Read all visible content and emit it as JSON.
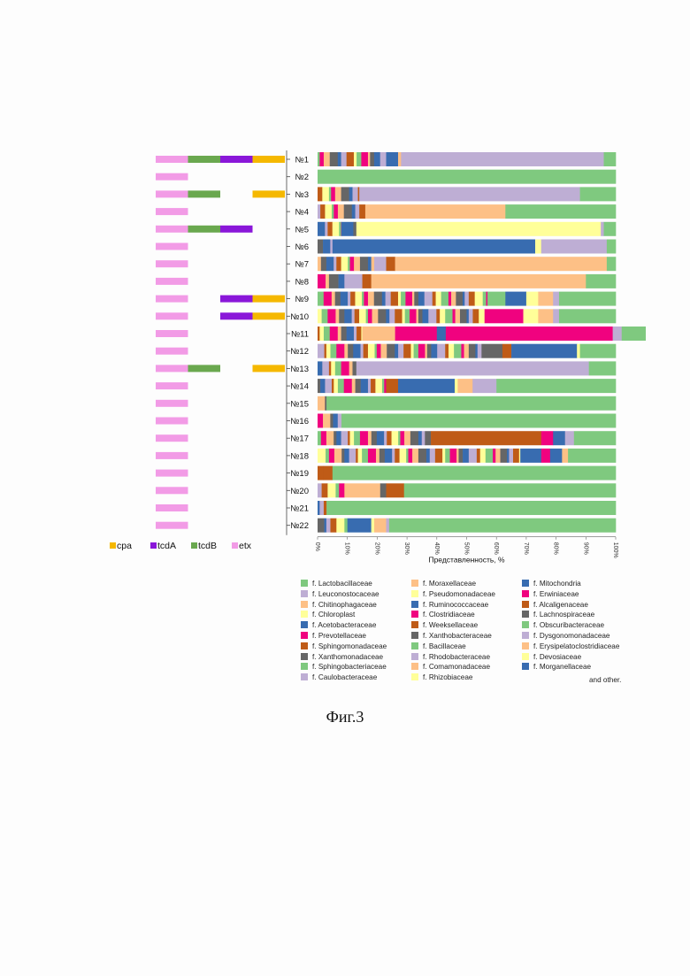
{
  "figure_caption": "Фиг.3",
  "legend_other": "and other.",
  "chart_data": [
    {
      "type": "bar",
      "orientation": "horizontal",
      "stacked": true,
      "title": "",
      "xlabel": "",
      "categories": [
        "№1",
        "№2",
        "№3",
        "№4",
        "№5",
        "№6",
        "№7",
        "№8",
        "№9",
        "№10",
        "№11",
        "№12",
        "№13",
        "№14",
        "№15",
        "№16",
        "№17",
        "№18",
        "№19",
        "№20",
        "№21",
        "№22"
      ],
      "series": [
        {
          "name": "cpa",
          "color": "#f5b800",
          "values": [
            1,
            0,
            1,
            0,
            0,
            0,
            0,
            0,
            1,
            1,
            0,
            0,
            1,
            0,
            0,
            0,
            0,
            0,
            0,
            0,
            0,
            0
          ]
        },
        {
          "name": "tcdA",
          "color": "#8a17d9",
          "values": [
            1,
            0,
            0,
            0,
            1,
            0,
            0,
            0,
            1,
            1,
            0,
            0,
            0,
            0,
            0,
            0,
            0,
            0,
            0,
            0,
            0,
            0
          ]
        },
        {
          "name": "tcdB",
          "color": "#6aa84f",
          "values": [
            1,
            0,
            1,
            0,
            1,
            0,
            0,
            0,
            0,
            0,
            0,
            0,
            1,
            0,
            0,
            0,
            0,
            0,
            0,
            0,
            0,
            0
          ]
        },
        {
          "name": "etx",
          "color": "#f29be6",
          "values": [
            1,
            1,
            1,
            1,
            1,
            1,
            1,
            1,
            1,
            1,
            1,
            1,
            1,
            1,
            1,
            1,
            1,
            1,
            1,
            1,
            1,
            1
          ]
        }
      ],
      "legend_position": "bottom"
    },
    {
      "type": "bar",
      "orientation": "horizontal",
      "stacked": true,
      "xlabel": "Представленность, %",
      "xlim": [
        0,
        100
      ],
      "xticks": [
        "0%",
        "10%",
        "20%",
        "30%",
        "40%",
        "50%",
        "60%",
        "70%",
        "80%",
        "90%",
        "100%"
      ],
      "categories": [
        "№1",
        "№2",
        "№3",
        "№4",
        "№5",
        "№6",
        "№7",
        "№8",
        "№9",
        "№10",
        "№11",
        "№12",
        "№13",
        "№14",
        "№15",
        "№16",
        "№17",
        "№18",
        "№19",
        "№20",
        "№21",
        "№22"
      ],
      "legend_position": "bottom",
      "legend": [
        {
          "label": "f. Lactobacillaceae",
          "color": "#7fc97f"
        },
        {
          "label": "f. Leuconostocaceae",
          "color": "#beaed4"
        },
        {
          "label": "f. Chitinophagaceae",
          "color": "#fdc086"
        },
        {
          "label": "f. Chloroplast",
          "color": "#ffff99"
        },
        {
          "label": "f. Acetobacteraceae",
          "color": "#386cb0"
        },
        {
          "label": "f. Prevotellaceae",
          "color": "#f0027f"
        },
        {
          "label": "f. Sphingomonadaceae",
          "color": "#bf5b17"
        },
        {
          "label": "f. Xanthomonadaceae",
          "color": "#666666"
        },
        {
          "label": "f. Sphingobacteriaceae",
          "color": "#7fc97f"
        },
        {
          "label": "f. Caulobacteraceae",
          "color": "#beaed4"
        },
        {
          "label": "f. Moraxellaceae",
          "color": "#fdc086"
        },
        {
          "label": "f. Pseudomonadaceae",
          "color": "#ffff99"
        },
        {
          "label": "f. Ruminococcaceae",
          "color": "#386cb0"
        },
        {
          "label": "f. Clostridiaceae",
          "color": "#f0027f"
        },
        {
          "label": "f. Weeksellaceae",
          "color": "#bf5b17"
        },
        {
          "label": "f. Xanthobacteraceae",
          "color": "#666666"
        },
        {
          "label": "f. Bacillaceae",
          "color": "#7fc97f"
        },
        {
          "label": "f. Rhodobacteraceae",
          "color": "#beaed4"
        },
        {
          "label": "f. Comamonadaceae",
          "color": "#fdc086"
        },
        {
          "label": "f. Rhizobiaceae",
          "color": "#ffff99"
        },
        {
          "label": "f. Mitochondria",
          "color": "#386cb0"
        },
        {
          "label": "f. Erwiniaceae",
          "color": "#f0027f"
        },
        {
          "label": "f. Alcaligenaceae",
          "color": "#bf5b17"
        },
        {
          "label": "f. Lachnospiraceae",
          "color": "#666666"
        },
        {
          "label": "f. Obscuribacteraceae",
          "color": "#7fc97f"
        },
        {
          "label": "f. Dysgonomonadaceae",
          "color": "#beaed4"
        },
        {
          "label": "f. Erysipelatoclostridiaceae",
          "color": "#fdc086"
        },
        {
          "label": "f. Devosiaceae",
          "color": "#ffff99"
        },
        {
          "label": "f. Morganellaceae",
          "color": "#386cb0"
        }
      ],
      "rows": [
        {
          "segments": [
            {
              "color": "#386cb0",
              "value": 4
            },
            {
              "color": "#fdc086",
              "value": 1
            },
            {
              "color": "#beaed4",
              "value": 68
            },
            {
              "color": "#7fc97f",
              "value": 4
            }
          ],
          "minor_until": 23
        },
        {
          "segments": [
            {
              "color": "#7fc97f",
              "value": 100
            }
          ],
          "minor_until": 0
        },
        {
          "segments": [
            {
              "color": "#beaed4",
              "value": 74
            },
            {
              "color": "#7fc97f",
              "value": 12
            }
          ],
          "minor_until": 14
        },
        {
          "segments": [
            {
              "color": "#bf5b17",
              "value": 2
            },
            {
              "color": "#fdc086",
              "value": 47
            },
            {
              "color": "#7fc97f",
              "value": 37
            }
          ],
          "minor_until": 14
        },
        {
          "segments": [
            {
              "color": "#386cb0",
              "value": 4
            },
            {
              "color": "#666666",
              "value": 1
            },
            {
              "color": "#ffff99",
              "value": 82
            },
            {
              "color": "#beaed4",
              "value": 1
            },
            {
              "color": "#7fc97f",
              "value": 4
            }
          ],
          "minor_until": 8
        },
        {
          "segments": [
            {
              "color": "#386cb0",
              "value": 68
            },
            {
              "color": "#ffff99",
              "value": 2
            },
            {
              "color": "#beaed4",
              "value": 22
            },
            {
              "color": "#7fc97f",
              "value": 3
            }
          ],
          "minor_until": 5
        },
        {
          "segments": [
            {
              "color": "#fdc086",
              "value": 1
            },
            {
              "color": "#beaed4",
              "value": 4
            },
            {
              "color": "#bf5b17",
              "value": 3
            },
            {
              "color": "#fdc086",
              "value": 71
            },
            {
              "color": "#7fc97f",
              "value": 3
            }
          ],
          "minor_until": 18
        },
        {
          "segments": [
            {
              "color": "#666666",
              "value": 3
            },
            {
              "color": "#386cb0",
              "value": 2
            },
            {
              "color": "#beaed4",
              "value": 6
            },
            {
              "color": "#bf5b17",
              "value": 3
            },
            {
              "color": "#fdc086",
              "value": 72
            },
            {
              "color": "#7fc97f",
              "value": 10
            }
          ],
          "minor_until": 4
        },
        {
          "segments": [
            {
              "color": "#7fc97f",
              "value": 6
            },
            {
              "color": "#386cb0",
              "value": 7
            },
            {
              "color": "#ffff99",
              "value": 4
            },
            {
              "color": "#fdc086",
              "value": 5
            },
            {
              "color": "#beaed4",
              "value": 2
            },
            {
              "color": "#7fc97f",
              "value": 19
            }
          ],
          "minor_until": 57
        },
        {
          "segments": [
            {
              "color": "#f0027f",
              "value": 13
            },
            {
              "color": "#ffff99",
              "value": 5
            },
            {
              "color": "#fdc086",
              "value": 5
            },
            {
              "color": "#beaed4",
              "value": 2
            },
            {
              "color": "#7fc97f",
              "value": 19
            }
          ],
          "minor_until": 56
        },
        {
          "segments": [
            {
              "color": "#fdc086",
              "value": 11
            },
            {
              "color": "#f0027f",
              "value": 14
            },
            {
              "color": "#386cb0",
              "value": 3
            },
            {
              "color": "#f0027f",
              "value": 56
            },
            {
              "color": "#beaed4",
              "value": 3
            },
            {
              "color": "#7fc97f",
              "value": 8
            }
          ],
          "minor_until": 15
        },
        {
          "segments": [
            {
              "color": "#666666",
              "value": 7
            },
            {
              "color": "#bf5b17",
              "value": 3
            },
            {
              "color": "#386cb0",
              "value": 22
            },
            {
              "color": "#ffff99",
              "value": 1
            },
            {
              "color": "#7fc97f",
              "value": 12
            }
          ],
          "minor_until": 55
        },
        {
          "segments": [
            {
              "color": "#beaed4",
              "value": 78
            },
            {
              "color": "#7fc97f",
              "value": 9
            }
          ],
          "minor_until": 13
        },
        {
          "segments": [
            {
              "color": "#bf5b17",
              "value": 4
            },
            {
              "color": "#386cb0",
              "value": 19
            },
            {
              "color": "#ffff99",
              "value": 1
            },
            {
              "color": "#fdc086",
              "value": 5
            },
            {
              "color": "#beaed4",
              "value": 8
            },
            {
              "color": "#7fc97f",
              "value": 40
            }
          ],
          "minor_until": 23
        },
        {
          "segments": [
            {
              "color": "#7fc97f",
              "value": 97
            }
          ],
          "minor_until": 3
        },
        {
          "segments": [
            {
              "color": "#7fc97f",
              "value": 92
            }
          ],
          "minor_until": 8
        },
        {
          "segments": [
            {
              "color": "#666666",
              "value": 2
            },
            {
              "color": "#bf5b17",
              "value": 37
            },
            {
              "color": "#f0027f",
              "value": 4
            },
            {
              "color": "#386cb0",
              "value": 4
            },
            {
              "color": "#beaed4",
              "value": 3
            },
            {
              "color": "#7fc97f",
              "value": 14
            }
          ],
          "minor_until": 36
        },
        {
          "segments": [
            {
              "color": "#386cb0",
              "value": 7
            },
            {
              "color": "#f0027f",
              "value": 3
            },
            {
              "color": "#386cb0",
              "value": 4
            },
            {
              "color": "#fdc086",
              "value": 2
            },
            {
              "color": "#7fc97f",
              "value": 16
            }
          ],
          "minor_until": 68
        },
        {
          "segments": [
            {
              "color": "#bf5b17",
              "value": 3
            },
            {
              "color": "#7fc97f",
              "value": 95
            }
          ],
          "minor_until": 2
        },
        {
          "segments": [
            {
              "color": "#fdc086",
              "value": 12
            },
            {
              "color": "#666666",
              "value": 2
            },
            {
              "color": "#bf5b17",
              "value": 6
            },
            {
              "color": "#7fc97f",
              "value": 71
            }
          ],
          "minor_until": 9
        },
        {
          "segments": [
            {
              "color": "#7fc97f",
              "value": 97
            }
          ],
          "minor_until": 3
        },
        {
          "segments": [
            {
              "color": "#386cb0",
              "value": 8
            },
            {
              "color": "#ffff99",
              "value": 1
            },
            {
              "color": "#fdc086",
              "value": 4
            },
            {
              "color": "#beaed4",
              "value": 1
            },
            {
              "color": "#7fc97f",
              "value": 76
            }
          ],
          "minor_until": 10
        }
      ]
    }
  ]
}
